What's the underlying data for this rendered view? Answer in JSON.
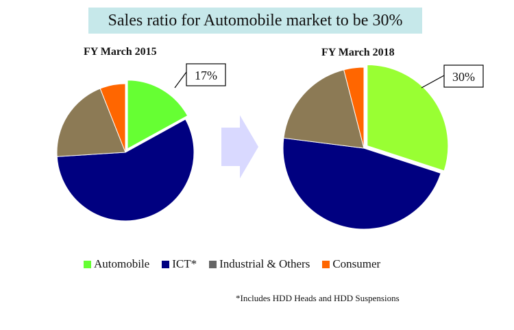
{
  "title": "Sales ratio for Automobile market to be 30%",
  "chart_data": [
    {
      "type": "pie",
      "title": "FY March 2015",
      "slices": [
        {
          "name": "Automobile",
          "value": 17,
          "color": "#66ff33",
          "label": "17%"
        },
        {
          "name": "ICT*",
          "value": 57,
          "color": "#000080",
          "label": ""
        },
        {
          "name": "Industrial & Others",
          "value": 20,
          "color": "#8c7a55",
          "label": ""
        },
        {
          "name": "Consumer",
          "value": 6,
          "color": "#ff6600",
          "label": ""
        }
      ],
      "exploded": "Automobile"
    },
    {
      "type": "pie",
      "title": "FY March 2018",
      "slices": [
        {
          "name": "Automobile",
          "value": 30,
          "color": "#99ff33",
          "label": "30%"
        },
        {
          "name": "ICT*",
          "value": 47,
          "color": "#000080",
          "label": ""
        },
        {
          "name": "Industrial & Others",
          "value": 19,
          "color": "#8c7a55",
          "label": ""
        },
        {
          "name": "Consumer",
          "value": 4,
          "color": "#ff6600",
          "label": ""
        }
      ],
      "exploded": "Automobile"
    }
  ],
  "legend": [
    {
      "label": "Automobile",
      "color": "#66ff33"
    },
    {
      "label": "ICT*",
      "color": "#000080"
    },
    {
      "label": "Industrial & Others",
      "color": "#666666"
    },
    {
      "label": "Consumer",
      "color": "#ff6600"
    }
  ],
  "footnote": "*Includes  HDD Heads and HDD Suspensions",
  "arrow_color": "#d9d9ff"
}
